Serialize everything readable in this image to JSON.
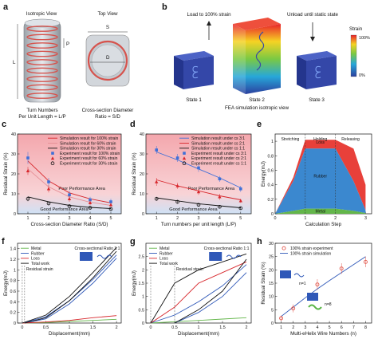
{
  "panel_a": {
    "label": "a",
    "iso_title": "Isotropic View",
    "top_title": "Top View",
    "dim_L": "L",
    "dim_P": "P",
    "dim_S": "S",
    "dim_D": "D",
    "cap_left": [
      "Turn Numbers",
      "Per Unit Length = L/P"
    ],
    "cap_right": [
      "Cross-section Diameter",
      "Ratio = S/D"
    ]
  },
  "panel_b": {
    "label": "b",
    "load_text": "Load to 100% strain",
    "unload_text": "Unload until static state",
    "cbar_title": "Strain",
    "cbar_max": "100%",
    "cbar_min": "0%",
    "state1": "State 1",
    "state2": "State 2",
    "state3": "State 3",
    "fea_caption": "FEA simulation isotropic view",
    "colors": {
      "low": "#2b3f9e",
      "high": "#e8212a"
    }
  },
  "chart_data": [
    {
      "id": "c",
      "label": "c",
      "type": "line",
      "xlabel": "Cross-section Diameter Ratio (S/D)",
      "ylabel": "Residual Strain (%)",
      "xlim": [
        0.5,
        5.5
      ],
      "ylim": [
        0,
        40
      ],
      "xticks": [
        1,
        2,
        3,
        4,
        5
      ],
      "yticks": [
        0,
        10,
        20,
        30,
        40
      ],
      "zones": {
        "poor": "Poor Performance Area",
        "good": "Good Performance Area"
      },
      "series": [
        {
          "name": "Simulation result for 100% strain",
          "kind": "line",
          "color": "#d7262b",
          "x": [
            1,
            2,
            3,
            4,
            5
          ],
          "y": [
            26.5,
            16.5,
            10.5,
            7.5,
            5.5
          ]
        },
        {
          "name": "Simulation result for  60% strain",
          "kind": "line",
          "color": "#e58f96",
          "x": [
            1,
            2,
            3,
            4,
            5
          ],
          "y": [
            22.5,
            13.5,
            8.5,
            5.8,
            4.2
          ]
        },
        {
          "name": "Simulation result for  30% strain",
          "kind": "line",
          "color": "#111111",
          "x": [
            1,
            2,
            3,
            4,
            5
          ],
          "y": [
            8.5,
            6.0,
            4.2,
            3.2,
            2.6
          ]
        },
        {
          "name": "Experiment result for 100% strain",
          "kind": "marker",
          "marker": "square",
          "color": "#3e6fd8",
          "x": [
            1,
            2,
            3,
            4,
            5
          ],
          "y": [
            28,
            16,
            9.5,
            7,
            6
          ],
          "err": [
            3,
            2,
            2,
            1.5,
            1.5
          ]
        },
        {
          "name": "Experiment result for  60% strain",
          "kind": "marker",
          "marker": "triangle",
          "color": "#d7262b",
          "x": [
            1,
            2,
            3,
            4,
            5
          ],
          "y": [
            21.5,
            12.5,
            7.5,
            5.5,
            4.5
          ],
          "err": [
            2,
            1.8,
            1.5,
            1.2,
            1
          ]
        },
        {
          "name": "Experiment result for  30% strain",
          "kind": "marker",
          "marker": "circle",
          "color": "#111111",
          "x": [
            1,
            2,
            3,
            4,
            5
          ],
          "y": [
            7.5,
            5.2,
            3.8,
            3.0,
            2.4
          ],
          "err": [
            1.2,
            1,
            0.8,
            0.7,
            0.6
          ]
        }
      ]
    },
    {
      "id": "d",
      "label": "d",
      "type": "line",
      "xlabel": "Turn numbers per unit length (L/P)",
      "ylabel": "Residual Strain (%)",
      "xlim": [
        0.5,
        5.5
      ],
      "ylim": [
        0,
        40
      ],
      "xticks": [
        1,
        2,
        3,
        4,
        5
      ],
      "yticks": [
        0,
        10,
        20,
        30,
        40
      ],
      "zones": {
        "poor": "Poor Performance Area",
        "good": "Good Performance Area"
      },
      "series": [
        {
          "name": "Simulation result under cs 3:1",
          "kind": "line",
          "color": "#3e6fd8",
          "x": [
            1,
            2,
            3,
            4,
            5
          ],
          "y": [
            31,
            27,
            22.5,
            18,
            13
          ]
        },
        {
          "name": "Simulation result under cs 2:1",
          "kind": "line",
          "color": "#d7262b",
          "x": [
            1,
            2,
            3,
            4,
            5
          ],
          "y": [
            17,
            14,
            11.5,
            9,
            7
          ]
        },
        {
          "name": "Simulation result under cs 1:1",
          "kind": "line",
          "color": "#111111",
          "x": [
            1,
            2,
            3,
            4,
            5
          ],
          "y": [
            8,
            6.5,
            5,
            4,
            3
          ]
        },
        {
          "name": "Experiment result under cs 3:1",
          "kind": "marker",
          "marker": "square",
          "color": "#3e6fd8",
          "x": [
            1,
            2,
            3,
            4,
            5
          ],
          "y": [
            32,
            28,
            23,
            17.5,
            12.5
          ],
          "err": [
            2,
            2,
            2,
            1.5,
            1.5
          ]
        },
        {
          "name": "Experiment result under cs 2:1",
          "kind": "marker",
          "marker": "triangle",
          "color": "#d7262b",
          "x": [
            1,
            2,
            3,
            4,
            5
          ],
          "y": [
            16,
            14,
            11,
            8.5,
            6.5
          ],
          "err": [
            2,
            1.5,
            1.5,
            1.5,
            1
          ]
        },
        {
          "name": "Experiment result under cs 1:1",
          "kind": "marker",
          "marker": "circle",
          "color": "#111111",
          "x": [
            1,
            2,
            3,
            4,
            5
          ],
          "y": [
            7.5,
            6,
            4.5,
            3.5,
            2.8
          ],
          "err": [
            1,
            1,
            0.8,
            0.6,
            0.6
          ]
        }
      ]
    },
    {
      "id": "e",
      "label": "e",
      "type": "area",
      "xlabel": "Calculation Step",
      "ylabel": "Energy(mJ)",
      "xlim": [
        0,
        3.2
      ],
      "ylim": [
        0,
        1.1
      ],
      "xticks": [
        0,
        1,
        2,
        3
      ],
      "yticks": [
        0.0,
        0.2,
        0.4,
        0.6,
        0.8,
        1.0
      ],
      "stages": [
        "Stretching",
        "Holding",
        "Releasing"
      ],
      "regions": [
        {
          "name": "Metal",
          "color": "#63b64a"
        },
        {
          "name": "Rubber",
          "color": "#3b88cf"
        },
        {
          "name": "Loss",
          "color": "#e8403a"
        }
      ],
      "x": [
        0,
        0.6,
        1.0,
        1.4,
        2.0,
        2.6,
        3.0
      ],
      "metal": [
        0,
        0.04,
        0.07,
        0.07,
        0.07,
        0.04,
        0.01
      ],
      "rubber": [
        0,
        0.45,
        0.9,
        0.9,
        0.9,
        0.45,
        0.05
      ],
      "total": [
        0,
        0.5,
        1.02,
        1.02,
        1.02,
        0.9,
        0.4
      ]
    },
    {
      "id": "f",
      "label": "f",
      "type": "line",
      "xlabel": "Displacement(mm)",
      "ylabel": "Energy(mJ)",
      "xlim": [
        -0.1,
        2.1
      ],
      "ylim": [
        0,
        1.5
      ],
      "xticks": [
        0.0,
        0.5,
        1.0,
        1.5,
        2.0
      ],
      "yticks": [
        0.0,
        0.2,
        0.4,
        0.6,
        0.8,
        1.0,
        1.2,
        1.4
      ],
      "legend": [
        "Metal",
        "Rubber",
        "Loss",
        "Total work"
      ],
      "inset_title": "Cross-sectional Ratio 3:1",
      "annotation": "Residual strain",
      "residual_x": 0.05
    },
    {
      "id": "g",
      "label": "g",
      "type": "line",
      "xlabel": "Displacement(mm)",
      "ylabel": "Energy(mJ)",
      "xlim": [
        -0.1,
        2.1
      ],
      "ylim": [
        0,
        3.0
      ],
      "xticks": [
        0.0,
        0.5,
        1.0,
        1.5,
        2.0
      ],
      "yticks": [
        0.0,
        0.5,
        1.0,
        1.5,
        2.0,
        2.5
      ],
      "legend": [
        "Metal",
        "Rubber",
        "Loss",
        "Total work"
      ],
      "inset_title": "Cross-sectional Ratio 1:1",
      "annotation": "Residual strain",
      "residual_x": 0.5
    },
    {
      "id": "h",
      "label": "h",
      "type": "scatter",
      "xlabel": "Multi-eHelix Wire Numbers (n)",
      "ylabel": "Residual Strain (%)",
      "xlim": [
        0.5,
        8.5
      ],
      "ylim": [
        0,
        30
      ],
      "xticks": [
        1,
        2,
        3,
        4,
        5,
        6,
        7,
        8
      ],
      "yticks": [
        0,
        5,
        10,
        15,
        20,
        25,
        30
      ],
      "series": [
        {
          "name": "100% strain experiment",
          "kind": "marker",
          "marker": "circle",
          "color": "#e2574c",
          "x": [
            1,
            2,
            4,
            6,
            8
          ],
          "y": [
            1.8,
            5.5,
            14.5,
            20.5,
            23.0
          ],
          "err": [
            1,
            1.5,
            2,
            2,
            2
          ]
        },
        {
          "name": "100% strain simulation",
          "kind": "line",
          "color": "#2f58b8",
          "x": [
            1,
            2,
            3,
            4,
            5,
            6,
            7,
            8
          ],
          "y": [
            2.5,
            6.0,
            9.5,
            12.8,
            16.0,
            19.0,
            22.0,
            25.0
          ]
        }
      ],
      "inset_labels": [
        "n=1",
        "n=8"
      ]
    }
  ]
}
